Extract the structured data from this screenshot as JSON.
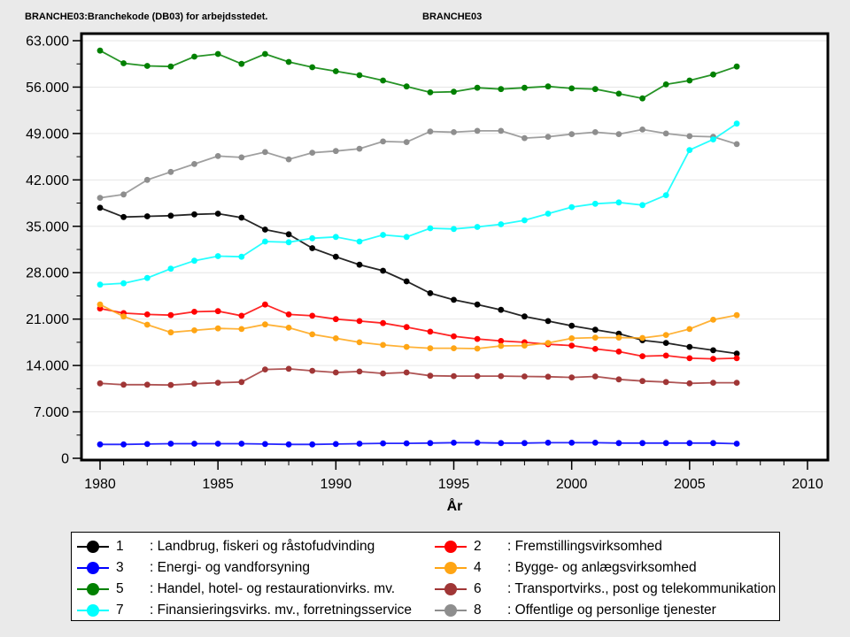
{
  "header": {
    "left_title": "BRANCHE03:Branchekode (DB03) for arbejdsstedet.",
    "right_title": "BRANCHE03"
  },
  "chart_data": {
    "type": "line",
    "title": "",
    "xlabel": "År",
    "ylabel": "",
    "x": [
      1980,
      1981,
      1982,
      1983,
      1984,
      1985,
      1986,
      1987,
      1988,
      1989,
      1990,
      1991,
      1992,
      1993,
      1994,
      1995,
      1996,
      1997,
      1998,
      1999,
      2000,
      2001,
      2002,
      2003,
      2004,
      2005,
      2006,
      2007
    ],
    "xticks": [
      1980,
      1985,
      1990,
      1995,
      2000,
      2005,
      2010
    ],
    "xlim": [
      1979.2,
      2010.9
    ],
    "yticks": [
      0,
      7000,
      14000,
      21000,
      28000,
      35000,
      42000,
      49000,
      56000,
      63000
    ],
    "ytick_labels": [
      "0",
      "7.000",
      "14.000",
      "21.000",
      "28.000",
      "35.000",
      "42.000",
      "49.000",
      "56.000",
      "63.000"
    ],
    "ylim": [
      0,
      63000
    ],
    "grid": "horizontal",
    "legend_position": "bottom",
    "colors": {
      "background": "#EAEAEA",
      "plot_background": "#FFFFFF",
      "gridline": "#E6E6E6",
      "frame": "#000000"
    },
    "series": [
      {
        "num": "1",
        "label": ": Landbrug, fiskeri og råstofudvinding",
        "color": "#000000",
        "values": [
          37800,
          36400,
          36500,
          36600,
          36800,
          36900,
          36300,
          34500,
          33800,
          31700,
          30400,
          29200,
          28300,
          26700,
          24900,
          23900,
          23200,
          22400,
          21400,
          20700,
          20000,
          19400,
          18800,
          17800,
          17400,
          16800,
          16300,
          15800
        ]
      },
      {
        "num": "2",
        "label": ": Fremstillingsvirksomhed",
        "color": "#FF0000",
        "values": [
          22600,
          21900,
          21700,
          21600,
          22100,
          22200,
          21500,
          23200,
          21700,
          21500,
          21000,
          20700,
          20400,
          19800,
          19100,
          18400,
          18000,
          17700,
          17500,
          17200,
          17000,
          16500,
          16100,
          15400,
          15500,
          15100,
          15000,
          15100
        ]
      },
      {
        "num": "3",
        "label": ": Energi- og vandforsyning",
        "color": "#0000FF",
        "values": [
          2100,
          2100,
          2150,
          2200,
          2200,
          2200,
          2200,
          2150,
          2100,
          2100,
          2150,
          2200,
          2250,
          2250,
          2300,
          2350,
          2350,
          2300,
          2300,
          2350,
          2350,
          2350,
          2300,
          2300,
          2300,
          2300,
          2300,
          2200
        ]
      },
      {
        "num": "4",
        "label": ": Bygge- og anlægsvirksomhed",
        "color": "#FFA514",
        "values": [
          23200,
          21400,
          20150,
          19000,
          19300,
          19600,
          19500,
          20200,
          19700,
          18700,
          18100,
          17500,
          17100,
          16800,
          16600,
          16600,
          16550,
          16950,
          17000,
          17400,
          18100,
          18200,
          18200,
          18150,
          18600,
          19500,
          20900,
          21600
        ]
      },
      {
        "num": "5",
        "label": ": Handel, hotel- og restaurationvirks. mv.",
        "color": "#008000",
        "values": [
          61500,
          59600,
          59200,
          59100,
          60600,
          61000,
          59500,
          61000,
          59800,
          59000,
          58400,
          57800,
          57000,
          56100,
          55200,
          55300,
          55900,
          55700,
          55900,
          56100,
          55800,
          55700,
          55000,
          54300,
          56400,
          57000,
          57900,
          59100
        ]
      },
      {
        "num": "6",
        "label": ": Transportvirks., post og telekommunikation",
        "color": "#A03636",
        "values": [
          11300,
          11100,
          11100,
          11050,
          11250,
          11400,
          11500,
          13400,
          13500,
          13200,
          12950,
          13100,
          12800,
          12950,
          12450,
          12400,
          12400,
          12400,
          12350,
          12300,
          12200,
          12350,
          11900,
          11650,
          11500,
          11300,
          11400,
          11400
        ]
      },
      {
        "num": "7",
        "label": ": Finansieringsvirks. mv., forretningsservice",
        "color": "#00FFFF",
        "values": [
          26200,
          26400,
          27200,
          28600,
          29800,
          30500,
          30400,
          32700,
          32600,
          33200,
          33400,
          32700,
          33700,
          33400,
          34700,
          34600,
          34900,
          35300,
          35900,
          36900,
          37900,
          38400,
          38600,
          38200,
          39700,
          46500,
          48100,
          50500
        ]
      },
      {
        "num": "8",
        "label": ": Offentlige og personlige tjenester",
        "color": "#8E8E8E",
        "values": [
          39300,
          39800,
          42000,
          43200,
          44400,
          45600,
          45400,
          46200,
          45100,
          46100,
          46350,
          46700,
          47800,
          47700,
          49300,
          49200,
          49400,
          49400,
          48300,
          48500,
          48900,
          49200,
          48900,
          49600,
          49000,
          48600,
          48500,
          47400
        ]
      }
    ]
  }
}
